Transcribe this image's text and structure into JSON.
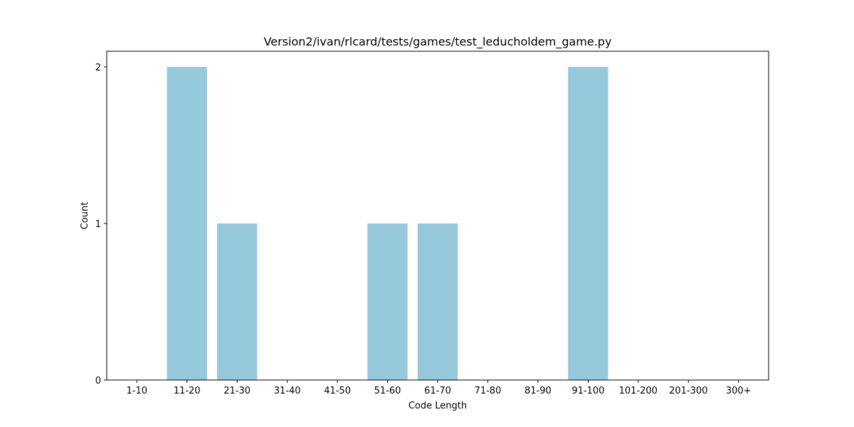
{
  "chart_data": {
    "type": "bar",
    "title": "Version2/ivan/rlcard/tests/games/test_leducholdem_game.py",
    "xlabel": "Code Length",
    "ylabel": "Count",
    "categories": [
      "1-10",
      "11-20",
      "21-30",
      "31-40",
      "41-50",
      "51-60",
      "61-70",
      "71-80",
      "81-90",
      "91-100",
      "101-200",
      "201-300",
      "300+"
    ],
    "values": [
      0,
      2,
      1,
      0,
      0,
      1,
      1,
      0,
      0,
      2,
      0,
      0,
      0
    ],
    "yticks": [
      0,
      1,
      2
    ],
    "ylim": [
      0,
      2.1
    ],
    "bar_color": "#96c9dc",
    "grid": false,
    "legend": "none"
  }
}
